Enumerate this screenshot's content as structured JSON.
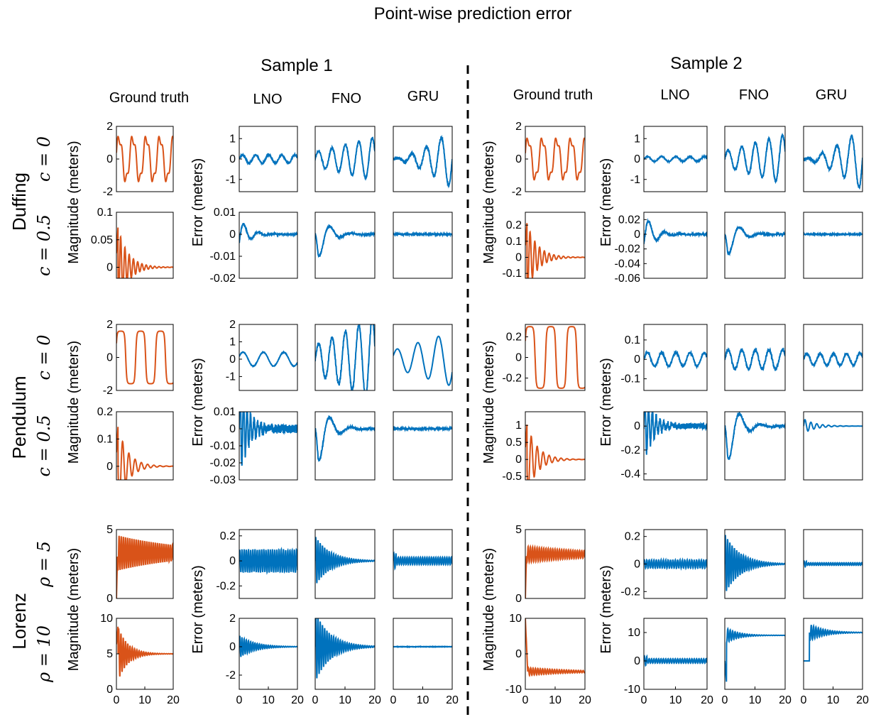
{
  "figure": {
    "title": "Point-wise prediction error",
    "samples": [
      "Sample 1",
      "Sample 2"
    ],
    "columns": [
      "Ground truth",
      "LNO",
      "FNO",
      "GRU"
    ],
    "systems": [
      {
        "name": "Duffing",
        "params": [
          "c = 0",
          "c = 0.5"
        ]
      },
      {
        "name": "Pendulum",
        "params": [
          "c = 0",
          "c = 0.5"
        ]
      },
      {
        "name": "Lorenz",
        "params": [
          "ρ = 5",
          "ρ = 10"
        ]
      }
    ],
    "magnitude_label": "Magnitude (meters)",
    "error_label": "Error (meters)",
    "x_ticks": [
      "0",
      "10",
      "20"
    ]
  },
  "colors": {
    "truth": "#D95319",
    "error": "#0072BD",
    "axis": "#000000"
  },
  "chart_data": {
    "type": "line",
    "xlim": [
      0,
      20
    ],
    "grid": false,
    "panels": [
      {
        "sample": 1,
        "system": "Duffing",
        "param": "c = 0",
        "truth": {
          "ylim": [
            -2,
            2
          ],
          "yticks": [
            -2,
            0,
            2
          ],
          "kind": "osc",
          "amp": 1.3,
          "period": 4.8
        },
        "error": {
          "ylim": [
            -1.6,
            1.6
          ],
          "yticks": [
            -1,
            0,
            1
          ],
          "models": [
            {
              "model": "LNO",
              "kind": "lowosc",
              "amp": 0.2
            },
            {
              "model": "FNO",
              "kind": "grow",
              "amp": 0.7
            },
            {
              "model": "GRU",
              "kind": "growfast",
              "amp": 1.4
            }
          ]
        }
      },
      {
        "sample": 1,
        "system": "Duffing",
        "param": "c = 0.5",
        "truth": {
          "ylim": [
            -0.02,
            0.1
          ],
          "yticks": [
            0,
            0.05,
            0.1
          ],
          "kind": "decay",
          "amp": 0.085,
          "period": 1.5,
          "offset": 0.0
        },
        "error": {
          "ylim": [
            -0.02,
            0.01
          ],
          "yticks": [
            -0.02,
            -0.01,
            0,
            0.01
          ],
          "models": [
            {
              "model": "LNO",
              "kind": "ringdown",
              "amp": 0.008
            },
            {
              "model": "FNO",
              "kind": "slowdip",
              "amp": 0.015
            },
            {
              "model": "GRU",
              "kind": "flat",
              "amp": 0.0005
            }
          ]
        }
      },
      {
        "sample": 1,
        "system": "Pendulum",
        "param": "c = 0",
        "truth": {
          "ylim": [
            -2,
            2
          ],
          "yticks": [
            -2,
            0,
            2
          ],
          "kind": "square",
          "amp": 1.6,
          "period": 7
        },
        "error": {
          "ylim": [
            -1.8,
            2
          ],
          "yticks": [
            -1,
            0,
            1,
            2
          ],
          "models": [
            {
              "model": "LNO",
              "kind": "wave",
              "amp": 0.5
            },
            {
              "model": "FNO",
              "kind": "grow",
              "amp": 1.6
            },
            {
              "model": "GRU",
              "kind": "wave2",
              "amp": 1.3
            }
          ]
        }
      },
      {
        "sample": 1,
        "system": "Pendulum",
        "param": "c = 0.5",
        "truth": {
          "ylim": [
            -0.05,
            0.2
          ],
          "yticks": [
            0,
            0.1,
            0.2
          ],
          "kind": "decay",
          "amp": 0.17,
          "period": 2.2,
          "offset": 0.0
        },
        "error": {
          "ylim": [
            -0.03,
            0.01
          ],
          "yticks": [
            -0.03,
            -0.02,
            -0.01,
            0,
            0.01
          ],
          "models": [
            {
              "model": "LNO",
              "kind": "spiky",
              "amp": 0.025
            },
            {
              "model": "FNO",
              "kind": "slowdip",
              "amp": 0.028
            },
            {
              "model": "GRU",
              "kind": "flat",
              "amp": 0.001
            }
          ]
        }
      },
      {
        "sample": 1,
        "system": "Lorenz",
        "param": "ρ = 5",
        "truth": {
          "ylim": [
            0,
            5
          ],
          "yticks": [
            0,
            5
          ],
          "kind": "lorenz",
          "amp": 1.3,
          "period": 0.75,
          "offset": 3.3
        },
        "error": {
          "ylim": [
            -0.3,
            0.25
          ],
          "yticks": [
            -0.2,
            0,
            0.2
          ],
          "models": [
            {
              "model": "LNO",
              "kind": "hfosc",
              "amp": 0.09
            },
            {
              "model": "FNO",
              "kind": "hfdecay",
              "amp": 0.2
            },
            {
              "model": "GRU",
              "kind": "hfsmall",
              "amp": 0.03
            }
          ]
        }
      },
      {
        "sample": 1,
        "system": "Lorenz",
        "param": "ρ = 10",
        "truth": {
          "ylim": [
            0,
            10
          ],
          "yticks": [
            0,
            5,
            10
          ],
          "kind": "decay",
          "amp": 4.5,
          "period": 0.8,
          "offset": 5.0
        },
        "error": {
          "ylim": [
            -3,
            2
          ],
          "yticks": [
            -2,
            0,
            2
          ],
          "models": [
            {
              "model": "LNO",
              "kind": "hfdecay",
              "amp": 0.8
            },
            {
              "model": "FNO",
              "kind": "hfdecay",
              "amp": 2.5
            },
            {
              "model": "GRU",
              "kind": "flat",
              "amp": 0.02
            }
          ]
        }
      },
      {
        "sample": 2,
        "system": "Duffing",
        "param": "c = 0",
        "truth": {
          "ylim": [
            -2,
            2
          ],
          "yticks": [
            -2,
            0,
            2
          ],
          "kind": "osc",
          "amp": 1.2,
          "period": 4.8
        },
        "error": {
          "ylim": [
            -1.6,
            1.6
          ],
          "yticks": [
            -1,
            0,
            1
          ],
          "models": [
            {
              "model": "LNO",
              "kind": "lowosc",
              "amp": 0.12
            },
            {
              "model": "FNO",
              "kind": "grow",
              "amp": 0.8
            },
            {
              "model": "GRU",
              "kind": "growfast",
              "amp": 1.5
            }
          ]
        }
      },
      {
        "sample": 2,
        "system": "Duffing",
        "param": "c = 0.5",
        "truth": {
          "ylim": [
            -0.13,
            0.28
          ],
          "yticks": [
            -0.1,
            0,
            0.1,
            0.2
          ],
          "kind": "decay",
          "amp": 0.25,
          "period": 1.6,
          "offset": 0.0
        },
        "error": {
          "ylim": [
            -0.06,
            0.03
          ],
          "yticks": [
            -0.06,
            -0.04,
            -0.02,
            0,
            0.02
          ],
          "models": [
            {
              "model": "LNO",
              "kind": "ringdown",
              "amp": 0.03
            },
            {
              "model": "FNO",
              "kind": "slowdip",
              "amp": 0.04
            },
            {
              "model": "GRU",
              "kind": "flat",
              "amp": 0.001
            }
          ]
        }
      },
      {
        "sample": 2,
        "system": "Pendulum",
        "param": "c = 0",
        "truth": {
          "ylim": [
            -0.32,
            0.32
          ],
          "yticks": [
            -0.2,
            0,
            0.2
          ],
          "kind": "square",
          "amp": 0.3,
          "period": 7
        },
        "error": {
          "ylim": [
            -0.16,
            0.18
          ],
          "yticks": [
            -0.1,
            0,
            0.1
          ],
          "models": [
            {
              "model": "LNO",
              "kind": "lowosc",
              "amp": 0.035
            },
            {
              "model": "FNO",
              "kind": "lowosc",
              "amp": 0.05
            },
            {
              "model": "GRU",
              "kind": "lowosc",
              "amp": 0.03
            }
          ]
        }
      },
      {
        "sample": 2,
        "system": "Pendulum",
        "param": "c = 0.5",
        "truth": {
          "ylim": [
            -0.6,
            1.4
          ],
          "yticks": [
            -0.5,
            0,
            0.5,
            1
          ],
          "kind": "decay",
          "amp": 1.2,
          "period": 2.0,
          "offset": 0.0
        },
        "error": {
          "ylim": [
            -0.45,
            0.12
          ],
          "yticks": [
            -0.4,
            -0.2,
            0
          ],
          "models": [
            {
              "model": "LNO",
              "kind": "spiky",
              "amp": 0.25
            },
            {
              "model": "FNO",
              "kind": "slowdip",
              "amp": 0.42
            },
            {
              "model": "GRU",
              "kind": "ringsmall",
              "amp": 0.02
            }
          ]
        }
      },
      {
        "sample": 2,
        "system": "Lorenz",
        "param": "ρ = 5",
        "truth": {
          "ylim": [
            0,
            5
          ],
          "yticks": [
            0,
            5
          ],
          "kind": "lorenz",
          "amp": 0.6,
          "period": 0.75,
          "offset": 3.2
        },
        "error": {
          "ylim": [
            -0.25,
            0.25
          ],
          "yticks": [
            -0.2,
            0,
            0.2
          ],
          "models": [
            {
              "model": "LNO",
              "kind": "hfosc",
              "amp": 0.03
            },
            {
              "model": "FNO",
              "kind": "hfdecay",
              "amp": 0.22
            },
            {
              "model": "GRU",
              "kind": "hfsmall",
              "amp": 0.01
            }
          ]
        }
      },
      {
        "sample": 2,
        "system": "Lorenz",
        "param": "ρ = 10",
        "truth": {
          "ylim": [
            -10,
            10
          ],
          "yticks": [
            -10,
            0,
            10
          ],
          "kind": "lorenzneg",
          "amp": 1.2,
          "period": 0.8,
          "offset": -5.0
        },
        "error": {
          "ylim": [
            -10,
            15
          ],
          "yticks": [
            -10,
            0,
            10
          ],
          "models": [
            {
              "model": "LNO",
              "kind": "hfsmall",
              "amp": 0.8
            },
            {
              "model": "FNO",
              "kind": "jumpup",
              "amp": 9
            },
            {
              "model": "GRU",
              "kind": "jumpup2",
              "amp": 10
            }
          ]
        }
      }
    ]
  }
}
